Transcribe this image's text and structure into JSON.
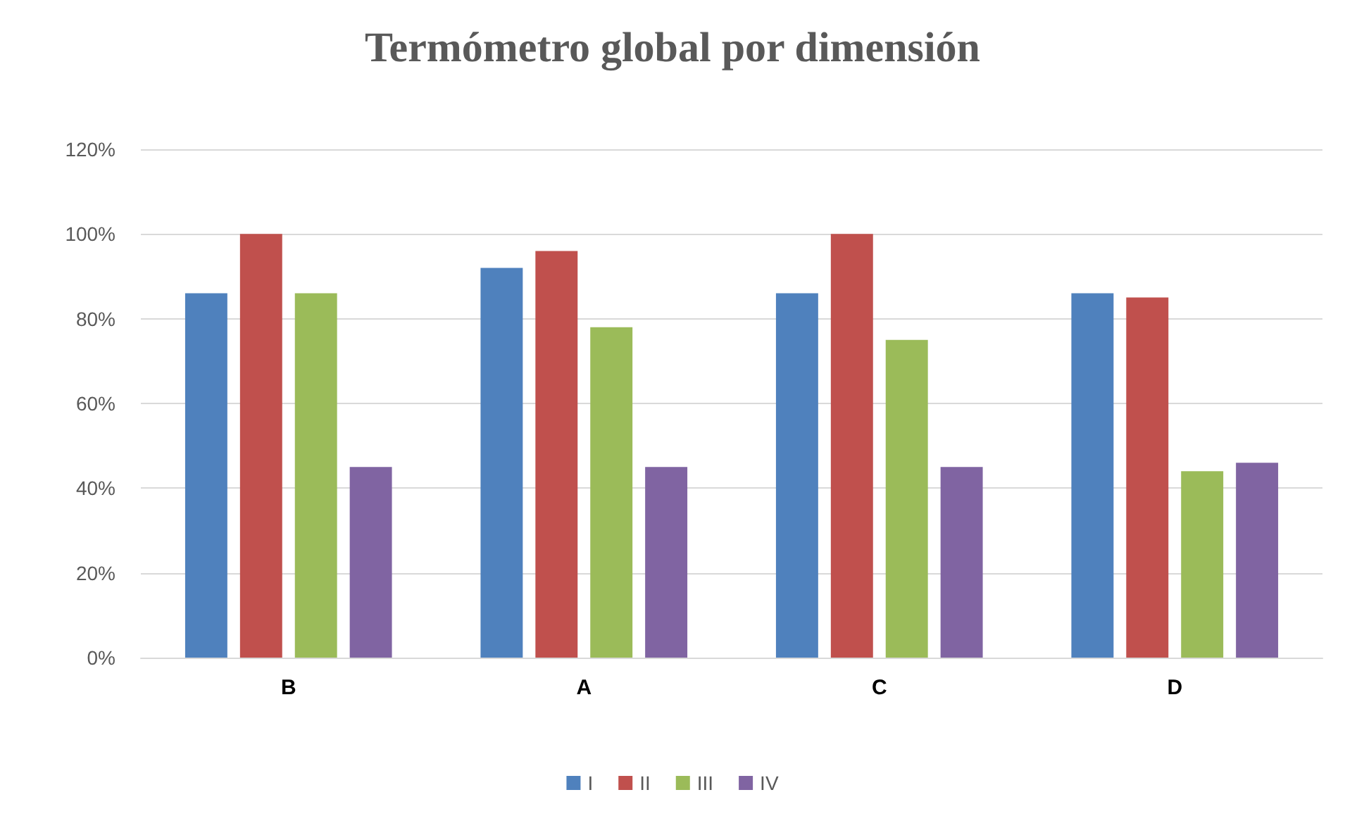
{
  "chart_data": {
    "type": "bar",
    "title": "Termómetro global por dimensión",
    "categories": [
      "B",
      "A",
      "C",
      "D"
    ],
    "series": [
      {
        "name": "I",
        "color": "#4f81bd",
        "values": [
          86,
          92,
          86,
          86
        ]
      },
      {
        "name": "II",
        "color": "#c0504d",
        "values": [
          100,
          96,
          100,
          85
        ]
      },
      {
        "name": "III",
        "color": "#9bbb59",
        "values": [
          86,
          78,
          75,
          44
        ]
      },
      {
        "name": "IV",
        "color": "#8064a2",
        "values": [
          45,
          45,
          45,
          46
        ]
      }
    ],
    "ylim": [
      0,
      120
    ],
    "yticks": [
      {
        "value": 0,
        "label": "0%"
      },
      {
        "value": 20,
        "label": "20%"
      },
      {
        "value": 40,
        "label": "40%"
      },
      {
        "value": 60,
        "label": "60%"
      },
      {
        "value": 80,
        "label": "80%"
      },
      {
        "value": 100,
        "label": "100%"
      },
      {
        "value": 120,
        "label": "120%"
      }
    ],
    "grid": "y",
    "legend": "bottom"
  }
}
